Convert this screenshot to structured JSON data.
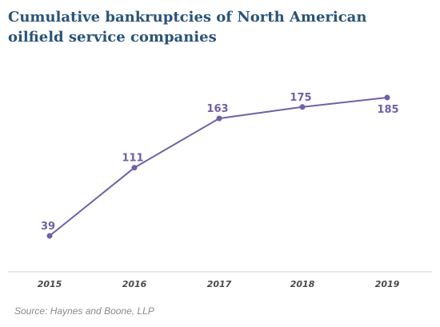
{
  "colors": {
    "title": "#2a5478",
    "series": "#7160a6",
    "axis": "#cccccc",
    "tick_label": "#4a4a4a",
    "source": "#8a8a8a"
  },
  "source": "Source: Haynes and Boone, LLP",
  "chart_data": {
    "type": "line",
    "title": "Cumulative bankruptcies of North American oilfield service companies",
    "xlabel": "",
    "ylabel": "",
    "x": [
      "2015",
      "2016",
      "2017",
      "2018",
      "2019"
    ],
    "series": [
      {
        "values": [
          39,
          111,
          163,
          175,
          185
        ],
        "labels": [
          "39",
          "111",
          "163",
          "175",
          "185"
        ]
      }
    ],
    "ylim": [
      0,
      185
    ],
    "grid": false,
    "legend": "none"
  }
}
